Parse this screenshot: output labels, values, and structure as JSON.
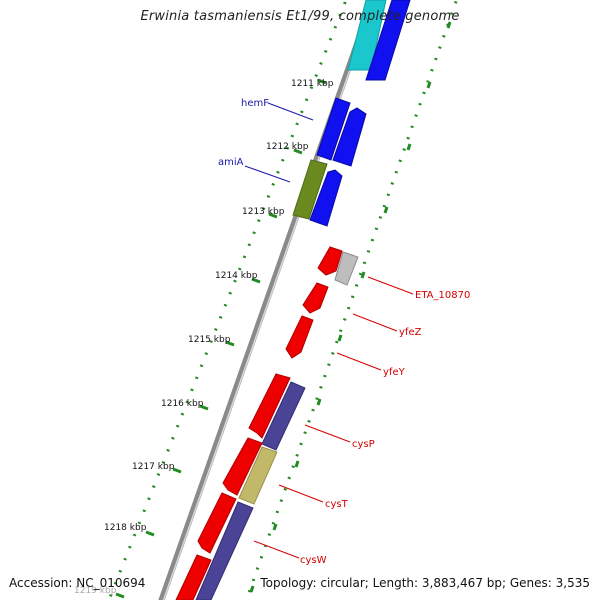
{
  "title": "Erwinia tasmaniensis Et1/99, complete genome",
  "footer": {
    "accession": "Accession: NC_010694",
    "stats": "Topology: circular; Length: 3,883,467 bp; Genes: 3,535"
  },
  "colors": {
    "background": "#ffffff",
    "backbone": "#808080",
    "tick_scale": "#228b22",
    "forward_label": "#1a1aa8",
    "reverse_label": "#d40000",
    "gene_cyan": "#19c7cc",
    "gene_blue": "#1010f0",
    "gene_olive": "#6a8a20",
    "gene_red": "#ee0000",
    "gene_grey": "#bdbdbd",
    "gene_slate": "#4b4396",
    "gene_khaki": "#c2b86a"
  },
  "tick_labels": [
    "1211 kbp",
    "1212 kbp",
    "1213 kbp",
    "1214 kbp",
    "1215 kbp",
    "1216 kbp",
    "1217 kbp",
    "1218 kbp",
    "1219 kbp"
  ],
  "gene_labels": [
    {
      "text": "hemF",
      "strand": "forward"
    },
    {
      "text": "amiA",
      "strand": "forward"
    },
    {
      "text": "ETA_10870",
      "strand": "reverse"
    },
    {
      "text": "yfeZ",
      "strand": "reverse"
    },
    {
      "text": "yfeY",
      "strand": "reverse"
    },
    {
      "text": "cysP",
      "strand": "reverse"
    },
    {
      "text": "cysT",
      "strand": "reverse"
    },
    {
      "text": "cysW",
      "strand": "reverse"
    }
  ]
}
